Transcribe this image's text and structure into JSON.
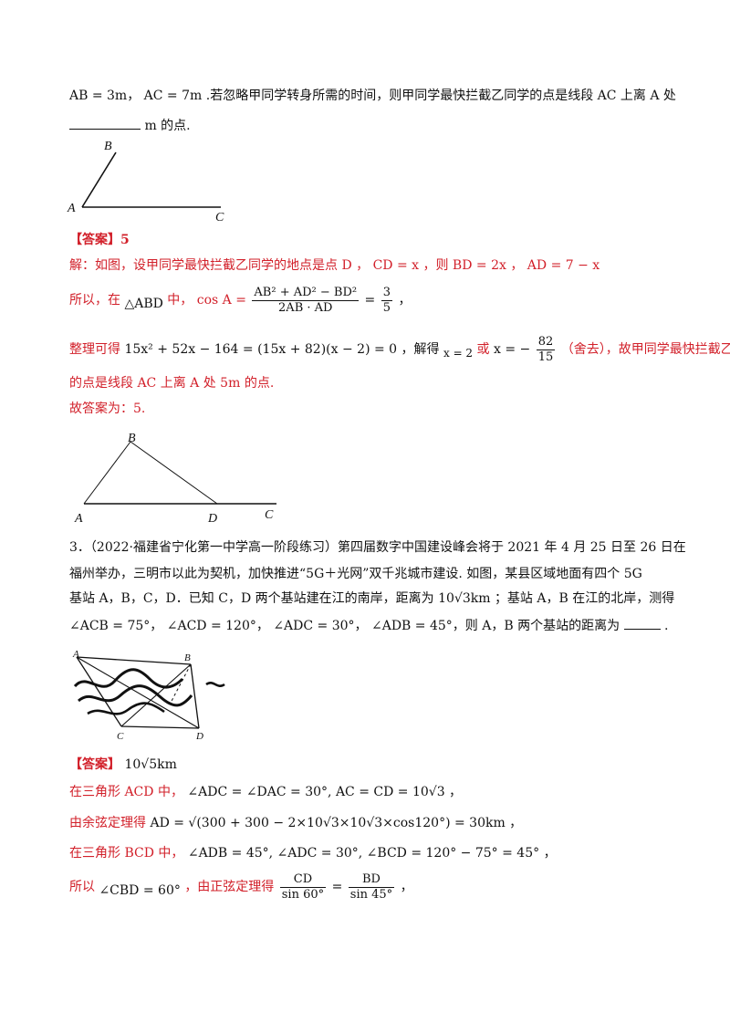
{
  "problem2": {
    "line1": "AB = 3m， AC = 7m .若忽略甲同学转身所需的时间，则甲同学最快拦截乙同学的点是线段 AC 上离 A 处",
    "line2_suffix": "m 的点.",
    "fig1_labels": {
      "a": "A",
      "b": "B",
      "c": "C"
    },
    "answer_head": "【答案】5",
    "sol1": "解：如图，设甲同学最快拦截乙同学的地点是点 D ， CD = x ，则 BD = 2x ， AD = 7 − x",
    "sol2_pre": "所以，在",
    "sol2_tri": "△ABD",
    "sol2_mid": "中， cos A =",
    "sol2_num": "AB² + AD² − BD²",
    "sol2_den": "2AB · AD",
    "sol2_eq": "=",
    "sol2_num2": "3",
    "sol2_den2": "5",
    "sol2_end": "，",
    "sol3_pre": "整理可得",
    "sol3_eq": "15x² + 52x − 164 = (15x + 82)(x − 2) = 0 ，解得",
    "sol3_x2": "x = 2",
    "sol3_or": "或",
    "sol3_x": "x = −",
    "sol3_num": "82",
    "sol3_den": "15",
    "sol3_end": "（舍去），故甲同学最快拦截乙同学",
    "sol4": "的点是线段 AC 上离 A 处 5m 的点.",
    "sol5": "故答案为：5.",
    "fig2_labels": {
      "a": "A",
      "b": "B",
      "c": "C",
      "d": "D"
    }
  },
  "problem3": {
    "line1": "3．（2022·福建省宁化第一中学高一阶段练习）第四届数字中国建设峰会将于 2021 年 4 月 25 日至 26 日在",
    "line2": "福州举办，三明市以此为契机，加快推进“5G＋光网”双千兆城市建设. 如图，某县区域地面有四个 5G",
    "line3_pre": "基站 A，B，C，D．已知 C，D 两个基站建在江的南岸，距离为",
    "line3_val": "10√3km",
    "line3_end": "；基站 A，B 在江的北岸，测得",
    "line4": "∠ACB = 75°， ∠ACD = 120°， ∠ADC = 30°， ∠ADB = 45°，则 A，B 两个基站的距离为",
    "line4_end": ".",
    "fig3_labels": {
      "a": "A",
      "b": "B",
      "c": "C",
      "d": "D"
    },
    "answer_head": "【答案】",
    "answer_val": "10√5km",
    "sol1_pre": "在三角形 ACD 中，",
    "sol1_eq": "∠ADC = ∠DAC = 30°, AC = CD = 10√3 ，",
    "sol2_pre": "由余弦定理得",
    "sol2_eq": "AD = √(300 + 300 − 2×10√3×10√3×cos120°) = 30km ，",
    "sol3_pre": "在三角形 BCD 中，",
    "sol3_eq": "∠ADB = 45°, ∠ADC = 30°, ∠BCD = 120° − 75° = 45° ，",
    "sol4_pre": "所以",
    "sol4_ang": "∠CBD = 60°",
    "sol4_mid": "，由正弦定理得",
    "sol4_num1": "CD",
    "sol4_den1": "sin 60°",
    "sol4_eq": "=",
    "sol4_num2": "BD",
    "sol4_den2": "sin 45°",
    "sol4_end": "，"
  }
}
